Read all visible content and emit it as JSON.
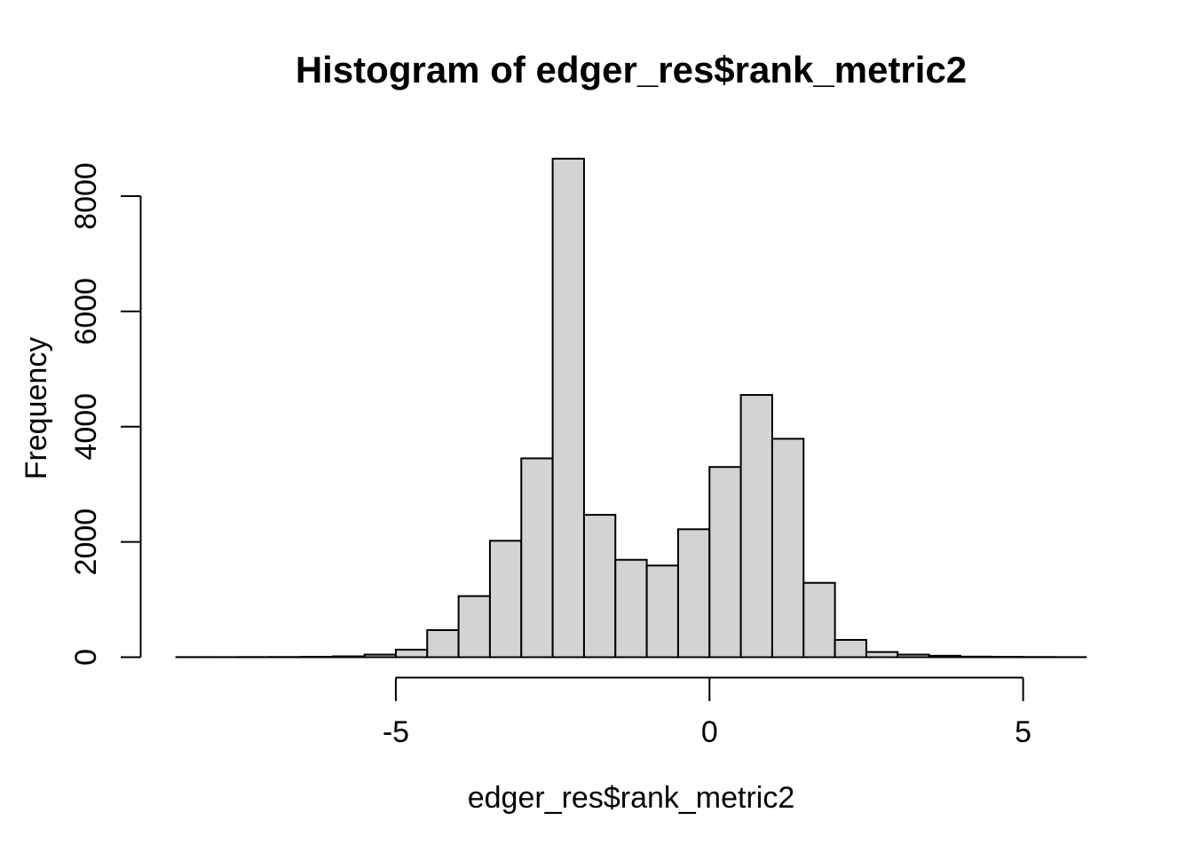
{
  "chart_data": {
    "type": "bar",
    "subtype": "histogram",
    "title": "Histogram of edger_res$rank_metric2",
    "xlabel": "edger_res$rank_metric2",
    "ylabel": "Frequency",
    "bin_start": -8.5,
    "bin_width": 0.5,
    "counts": [
      2,
      2,
      3,
      4,
      8,
      15,
      45,
      130,
      470,
      1060,
      2020,
      3450,
      8650,
      2470,
      1690,
      1590,
      2220,
      3300,
      4550,
      3790,
      1290,
      300,
      90,
      45,
      25,
      10,
      6,
      4,
      2
    ],
    "x_ticks": [
      -5,
      0,
      5
    ],
    "y_ticks": [
      0,
      2000,
      4000,
      6000,
      8000
    ],
    "xlim": [
      -8.5,
      6
    ],
    "ylim": [
      0,
      8650
    ],
    "grid": false,
    "legend": false,
    "bar_fill": "#d3d3d3",
    "bar_border": "#000000",
    "axis_color": "#000000",
    "background": "#ffffff"
  }
}
